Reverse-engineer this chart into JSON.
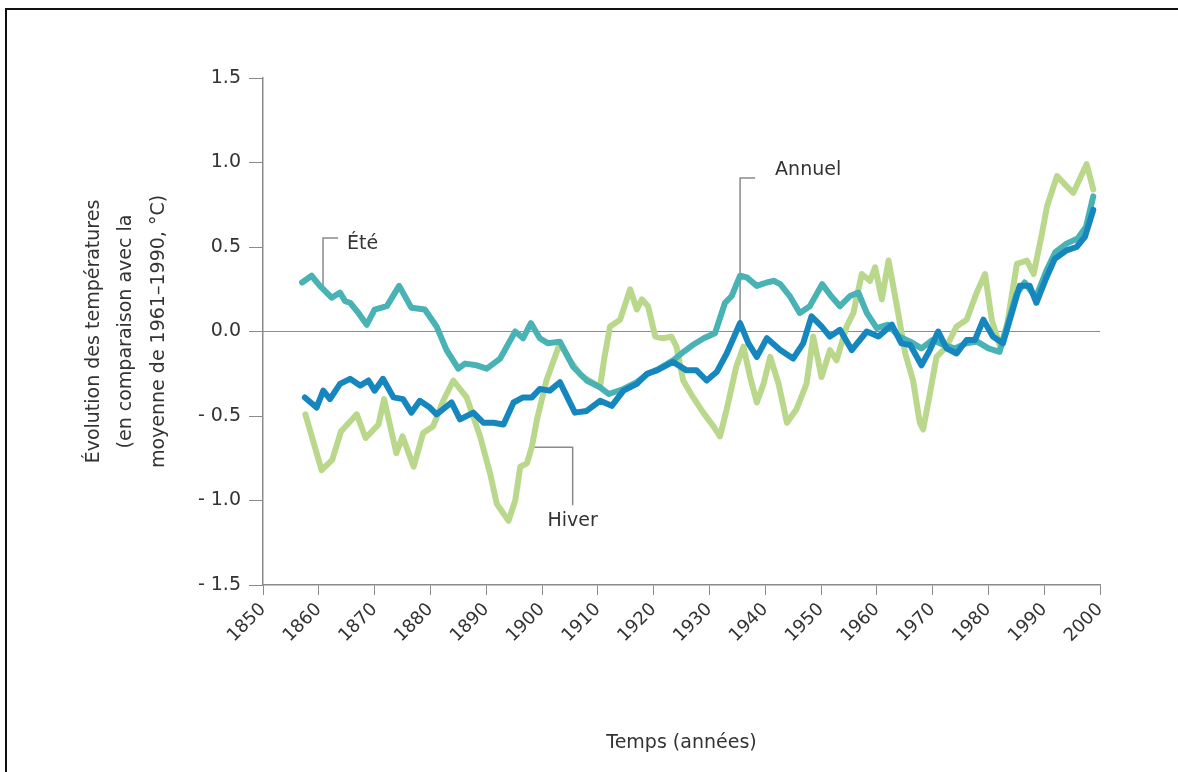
{
  "chart_data": {
    "type": "line",
    "xlabel": "Temps (années)",
    "ylabel": "Évolution des températures\n(en comparaison avec la\nmoyenne de 1961–1990, °C)",
    "xlim": [
      1850,
      2000
    ],
    "xticks": [
      1850,
      1860,
      1870,
      1880,
      1890,
      1900,
      1910,
      1920,
      1930,
      1940,
      1950,
      1960,
      1970,
      1980,
      1990,
      2000
    ],
    "ylim": [
      -1.5,
      1.5
    ],
    "yticks": [
      {
        "value": -1.5,
        "label": "- 1.5"
      },
      {
        "value": -1,
        "label": "- 1.0"
      },
      {
        "value": -0.5,
        "label": "- 0.5"
      },
      {
        "value": 0,
        "label": "0.0"
      },
      0.5,
      {
        "value": 1,
        "label": "1.0"
      },
      1.5
    ],
    "grid": false,
    "legend": false,
    "ref_lines": [
      {
        "axis": "y",
        "value": 0,
        "color": "#8c8c8c"
      }
    ],
    "series": [
      {
        "name": "Hiver",
        "color": "#bad88c",
        "x": [
          1857.6,
          1860.5,
          1862.4,
          1864.0,
          1866.8,
          1868.4,
          1870.7,
          1871.7,
          1873.9,
          1875.0,
          1877.0,
          1878.7,
          1880.5,
          1882.3,
          1884.1,
          1886.5,
          1888.9,
          1890.7,
          1891.9,
          1894.0,
          1895.2,
          1896.1,
          1897.3,
          1898.2,
          1899.1,
          1900.8,
          1903.2,
          1905.0,
          1907.0,
          1909.0,
          1910.4,
          1911.2,
          1912.2,
          1914.0,
          1915.8,
          1917.0,
          1917.9,
          1919.0,
          1920.3,
          1921.7,
          1923.2,
          1924.1,
          1925.3,
          1927.1,
          1928.9,
          1930.7,
          1931.9,
          1933.1,
          1934.8,
          1936.1,
          1937.3,
          1938.5,
          1939.7,
          1940.9,
          1942.4,
          1943.9,
          1945.6,
          1947.4,
          1948.6,
          1950.1,
          1951.6,
          1952.8,
          1954.6,
          1955.8,
          1957.3,
          1958.8,
          1959.7,
          1960.9,
          1962.1,
          1963.6,
          1965.1,
          1966.5,
          1967.7,
          1968.3,
          1969.5,
          1970.7,
          1972.5,
          1974.3,
          1976.1,
          1977.9,
          1979.4,
          1980.6,
          1982.1,
          1983.3,
          1985.1,
          1986.9,
          1988.1,
          1989.6,
          1990.5,
          1992.3,
          1994.0,
          1995.2,
          1997.6,
          1998.8
        ],
        "values": [
          -0.49,
          -0.82,
          -0.76,
          -0.59,
          -0.49,
          -0.63,
          -0.55,
          -0.4,
          -0.72,
          -0.62,
          -0.8,
          -0.6,
          -0.56,
          -0.41,
          -0.29,
          -0.39,
          -0.62,
          -0.84,
          -1.02,
          -1.12,
          -1.0,
          -0.8,
          -0.78,
          -0.68,
          -0.52,
          -0.29,
          -0.07,
          -0.17,
          -0.26,
          -0.3,
          -0.33,
          -0.15,
          0.03,
          0.07,
          0.25,
          0.13,
          0.19,
          0.15,
          -0.03,
          -0.04,
          -0.03,
          -0.09,
          -0.29,
          -0.39,
          -0.48,
          -0.56,
          -0.62,
          -0.46,
          -0.21,
          -0.09,
          -0.27,
          -0.42,
          -0.31,
          -0.15,
          -0.31,
          -0.54,
          -0.46,
          -0.31,
          -0.03,
          -0.27,
          -0.11,
          -0.17,
          0.03,
          0.11,
          0.34,
          0.3,
          0.38,
          0.19,
          0.42,
          0.15,
          -0.13,
          -0.29,
          -0.54,
          -0.58,
          -0.37,
          -0.15,
          -0.09,
          0.03,
          0.07,
          0.23,
          0.34,
          0.07,
          -0.09,
          0.03,
          0.4,
          0.42,
          0.34,
          0.58,
          0.74,
          0.92,
          0.86,
          0.82,
          0.99,
          0.84
        ]
      },
      {
        "name": "Été",
        "color": "#48b2b4",
        "x": [
          1857.0,
          1858.7,
          1860.2,
          1862.3,
          1863.8,
          1864.7,
          1865.6,
          1867.1,
          1868.6,
          1870.0,
          1872.2,
          1874.4,
          1876.6,
          1879.0,
          1881.1,
          1882.9,
          1885.0,
          1886.2,
          1888.3,
          1890.1,
          1892.5,
          1895.2,
          1896.6,
          1898.0,
          1899.6,
          1901.1,
          1903.2,
          1905.6,
          1908.0,
          1910.4,
          1912.0,
          1914.6,
          1917.0,
          1919.0,
          1921.0,
          1923.5,
          1925.0,
          1927.0,
          1929.0,
          1931.0,
          1932.8,
          1934.0,
          1935.5,
          1936.7,
          1938.5,
          1940.3,
          1941.5,
          1942.7,
          1944.4,
          1946.2,
          1948.0,
          1950.2,
          1951.8,
          1953.4,
          1955.2,
          1956.7,
          1958.2,
          1960,
          1962,
          1964,
          1966,
          1968,
          1970,
          1972,
          1974,
          1976,
          1978,
          1980,
          1982,
          1983.5,
          1985,
          1986.5,
          1988.5,
          1990.4,
          1992,
          1994,
          1996,
          1997.5,
          1998.8
        ],
        "values": [
          0.29,
          0.33,
          0.27,
          0.2,
          0.23,
          0.18,
          0.17,
          0.11,
          0.04,
          0.13,
          0.15,
          0.27,
          0.14,
          0.13,
          0.03,
          -0.11,
          -0.22,
          -0.19,
          -0.2,
          -0.22,
          -0.16,
          0.0,
          -0.04,
          0.05,
          -0.04,
          -0.07,
          -0.06,
          -0.21,
          -0.29,
          -0.33,
          -0.37,
          -0.34,
          -0.3,
          -0.25,
          -0.22,
          -0.17,
          -0.13,
          -0.08,
          -0.04,
          -0.01,
          0.17,
          0.21,
          0.33,
          0.32,
          0.27,
          0.29,
          0.3,
          0.28,
          0.21,
          0.11,
          0.15,
          0.28,
          0.21,
          0.15,
          0.21,
          0.23,
          0.11,
          0.02,
          0.04,
          -0.03,
          -0.06,
          -0.1,
          -0.05,
          -0.08,
          -0.1,
          -0.07,
          -0.06,
          -0.1,
          -0.12,
          0.05,
          0.22,
          0.29,
          0.2,
          0.36,
          0.47,
          0.52,
          0.55,
          0.62,
          0.8
        ]
      },
      {
        "name": "Annuel",
        "color": "#1686be",
        "x": [
          1857.5,
          1859.6,
          1860.8,
          1862.0,
          1863.8,
          1865.6,
          1867.4,
          1868.9,
          1870.0,
          1871.5,
          1873.4,
          1875.1,
          1876.6,
          1878.1,
          1879.9,
          1881.1,
          1883.8,
          1885.3,
          1887.7,
          1889.5,
          1891.3,
          1893.1,
          1894.9,
          1896.6,
          1898.2,
          1899.6,
          1901.4,
          1903.2,
          1905.9,
          1908.0,
          1910.4,
          1912.5,
          1914.6,
          1917.0,
          1918.8,
          1920.6,
          1923.5,
          1925.9,
          1927.7,
          1929.5,
          1931.3,
          1933.1,
          1935.5,
          1937.0,
          1938.5,
          1940.3,
          1942.7,
          1945.0,
          1946.8,
          1948.3,
          1950.1,
          1951.6,
          1953.4,
          1955.5,
          1958.2,
          1960.3,
          1962.7,
          1964.4,
          1966.0,
          1968.0,
          1969.5,
          1971.0,
          1972.5,
          1974.3,
          1976.1,
          1977.6,
          1979.1,
          1980.8,
          1982.6,
          1984.2,
          1985.6,
          1987.4,
          1988.6,
          1990.4,
          1991.9,
          1994.0,
          1995.8,
          1997.3,
          1998.8
        ],
        "values": [
          -0.39,
          -0.45,
          -0.35,
          -0.4,
          -0.31,
          -0.28,
          -0.32,
          -0.29,
          -0.35,
          -0.28,
          -0.39,
          -0.4,
          -0.48,
          -0.41,
          -0.45,
          -0.49,
          -0.42,
          -0.52,
          -0.48,
          -0.54,
          -0.54,
          -0.55,
          -0.42,
          -0.39,
          -0.39,
          -0.34,
          -0.35,
          -0.3,
          -0.48,
          -0.47,
          -0.41,
          -0.44,
          -0.35,
          -0.31,
          -0.25,
          -0.23,
          -0.18,
          -0.23,
          -0.23,
          -0.29,
          -0.24,
          -0.13,
          0.05,
          -0.07,
          -0.15,
          -0.04,
          -0.11,
          -0.16,
          -0.07,
          0.09,
          0.03,
          -0.03,
          0.01,
          -0.11,
          0.0,
          -0.03,
          0.04,
          -0.07,
          -0.08,
          -0.2,
          -0.11,
          0.0,
          -0.1,
          -0.13,
          -0.05,
          -0.05,
          0.07,
          -0.03,
          -0.07,
          0.11,
          0.27,
          0.27,
          0.17,
          0.32,
          0.43,
          0.48,
          0.5,
          0.56,
          0.72
        ]
      }
    ]
  }
}
